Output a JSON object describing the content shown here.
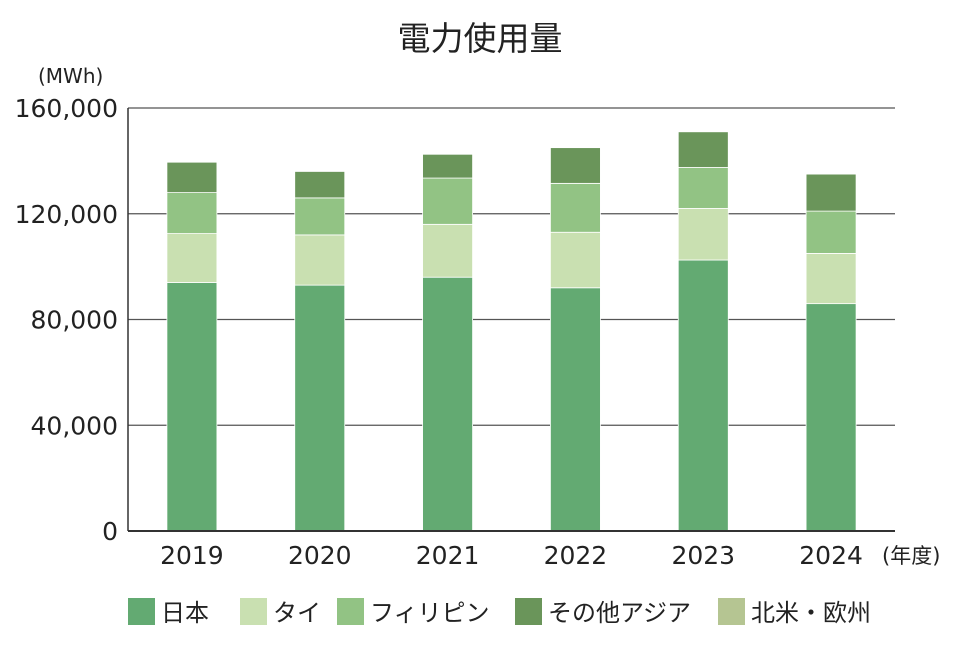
{
  "chart_data": {
    "type": "bar",
    "stacked": true,
    "title": "電力使用量",
    "ylabel": "(MWh)",
    "xlabel": "(年度)",
    "ylim": [
      0,
      160000
    ],
    "yticks": [
      0,
      40000,
      80000,
      120000,
      160000
    ],
    "ytick_labels": [
      "0",
      "40,000",
      "80,000",
      "120,000",
      "160,000"
    ],
    "categories": [
      "2019",
      "2020",
      "2021",
      "2022",
      "2023",
      "2024"
    ],
    "series": [
      {
        "name": "日本",
        "color": "#63aa72",
        "values": [
          94000,
          93000,
          96000,
          92000,
          102500,
          86000
        ]
      },
      {
        "name": "タイ",
        "color": "#c9e0b1",
        "values": [
          18500,
          19000,
          20000,
          21000,
          19500,
          19000
        ]
      },
      {
        "name": "フィリピン",
        "color": "#92c384",
        "values": [
          15500,
          14000,
          17500,
          18500,
          15500,
          16000
        ]
      },
      {
        "name": "その他アジア",
        "color": "#6a955a",
        "values": [
          11500,
          10000,
          9000,
          13500,
          13500,
          14000
        ]
      },
      {
        "name": "北米・欧州",
        "color": "#b5c592",
        "values": [
          0,
          0,
          0,
          0,
          0,
          0
        ]
      }
    ],
    "grid": true,
    "legend_position": "bottom"
  }
}
